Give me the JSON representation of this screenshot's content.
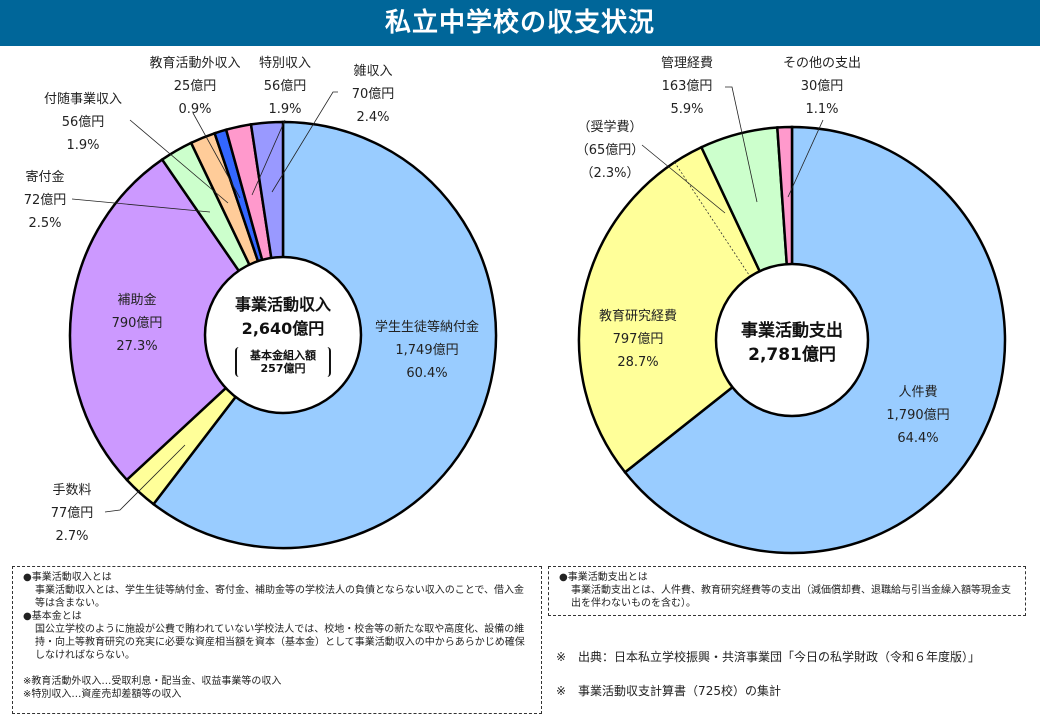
{
  "title": "私立中学校の収支状況",
  "chart_data": [
    {
      "type": "pie",
      "variant": "donut",
      "title": "事業活動収入",
      "total_label": "2,640億円",
      "sub_title": "基本金組入額",
      "sub_value": "257億円",
      "start": "top",
      "direction": "clockwise",
      "slices": [
        {
          "name": "学生生徒等納付金",
          "amount": "1,749億円",
          "percent_label": "60.4%",
          "value": 60.4,
          "color": "#99CCFF"
        },
        {
          "name": "手数料",
          "amount": "77億円",
          "percent_label": "2.7%",
          "value": 2.7,
          "color": "#FFFF99"
        },
        {
          "name": "補助金",
          "amount": "790億円",
          "percent_label": "27.3%",
          "value": 27.3,
          "color": "#CC99FF"
        },
        {
          "name": "寄付金",
          "amount": "72億円",
          "percent_label": "2.5%",
          "value": 2.5,
          "color": "#CCFFCC"
        },
        {
          "name": "付随事業収入",
          "amount": "56億円",
          "percent_label": "1.9%",
          "value": 1.9,
          "color": "#FFCC99"
        },
        {
          "name": "教育活動外収入",
          "amount": "25億円",
          "percent_label": "0.9%",
          "value": 0.9,
          "color": "#3366FF"
        },
        {
          "name": "特別収入",
          "amount": "56億円",
          "percent_label": "1.9%",
          "value": 1.9,
          "color": "#FF99CC"
        },
        {
          "name": "雑収入",
          "amount": "70億円",
          "percent_label": "2.4%",
          "value": 2.4,
          "color": "#9999FF"
        }
      ]
    },
    {
      "type": "pie",
      "variant": "donut",
      "title": "事業活動支出",
      "total_label": "2,781億円",
      "start": "top",
      "direction": "clockwise",
      "slices": [
        {
          "name": "人件費",
          "amount": "1,790億円",
          "percent_label": "64.4%",
          "value": 64.4,
          "color": "#99CCFF"
        },
        {
          "name": "教育研究経費",
          "amount": "797億円",
          "percent_label": "28.7%",
          "value": 28.7,
          "color": "#FFFF99",
          "sub": {
            "name": "（奨学費）",
            "amount": "（65億円）",
            "percent_label": "（2.3%）",
            "value": 2.3
          }
        },
        {
          "name": "管理経費",
          "amount": "163億円",
          "percent_label": "5.9%",
          "value": 5.9,
          "color": "#CCFFCC"
        },
        {
          "name": "その他の支出",
          "amount": "30億円",
          "percent_label": "1.1%",
          "value": 1.1,
          "color": "#FF99CC"
        }
      ]
    }
  ],
  "notes_left": {
    "h1": "●事業活動収入とは",
    "p1": "事業活動収入とは、学生生徒等納付金、寄付金、補助金等の学校法人の負債とならない収入のことで、借入金等は含まない。",
    "h2": "●基本金とは",
    "p2": "国公立学校のように施設が公費で賄われていない学校法人では、校地・校舎等の新たな取や高度化、設備の維持・向上等教育研究の充実に必要な資産相当額を資本（基本金）として事業活動収入の中からあらかじめ確保しなければならない。",
    "n1": "※教育活動外収入…受取利息・配当金、収益事業等の収入",
    "n2": "※特別収入…資産売却差額等の収入"
  },
  "notes_right": {
    "h1": "●事業活動支出とは",
    "p1": "事業活動支出とは、人件費、教育研究経費等の支出（減価償却費、退職給与引当金繰入額等現金支出を伴わないものを含む）。"
  },
  "source": "※　出典：日本私立学校振興・共済事業団「今日の私学財政（令和６年度版）」",
  "aggregate": "※　事業活動収支計算書（725校）の集計"
}
